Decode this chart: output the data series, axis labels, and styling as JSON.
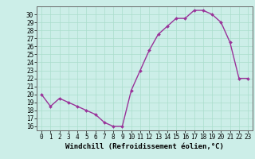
{
  "x": [
    0,
    1,
    2,
    3,
    4,
    5,
    6,
    7,
    8,
    9,
    10,
    11,
    12,
    13,
    14,
    15,
    16,
    17,
    18,
    19,
    20,
    21,
    22,
    23
  ],
  "y": [
    20,
    18.5,
    19.5,
    19,
    18.5,
    18,
    17.5,
    16.5,
    16,
    16,
    20.5,
    23,
    25.5,
    27.5,
    28.5,
    29.5,
    29.5,
    30.5,
    30.5,
    30,
    29,
    26.5,
    22,
    22
  ],
  "xlabel": "Windchill (Refroidissement éolien,°C)",
  "ylim": [
    15.5,
    31
  ],
  "xlim": [
    -0.5,
    23.5
  ],
  "yticks": [
    16,
    17,
    18,
    19,
    20,
    21,
    22,
    23,
    24,
    25,
    26,
    27,
    28,
    29,
    30
  ],
  "xticks": [
    0,
    1,
    2,
    3,
    4,
    5,
    6,
    7,
    8,
    9,
    10,
    11,
    12,
    13,
    14,
    15,
    16,
    17,
    18,
    19,
    20,
    21,
    22,
    23
  ],
  "line_color": "#993399",
  "marker": "D",
  "bg_color": "#cceee8",
  "grid_color": "#aaddcc",
  "marker_size": 2.0,
  "line_width": 1.0,
  "xlabel_fontsize": 6.5,
  "tick_fontsize": 5.5
}
